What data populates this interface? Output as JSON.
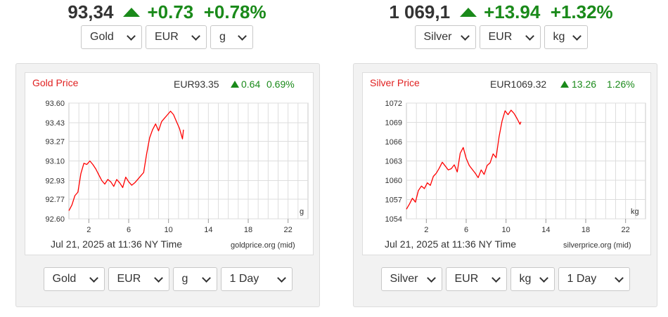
{
  "gold": {
    "headline": {
      "price": "93,34",
      "change": "+0.73",
      "change_pct": "+0.78%"
    },
    "top_selects": {
      "metal": "Gold",
      "currency": "EUR",
      "unit": "g"
    },
    "bottom_selects": {
      "metal": "Gold",
      "currency": "EUR",
      "unit": "g",
      "period": "1 Day"
    },
    "chart_title": "Gold Price",
    "chart_price": "EUR93.35",
    "chart_change": "0.64",
    "chart_change_pct": "0.69%",
    "unit_label": "g",
    "timestamp": "Jul 21, 2025 at 11:36 NY Time",
    "source": "goldprice.org (mid)"
  },
  "silver": {
    "headline": {
      "price": "1 069,1",
      "change": "+13.94",
      "change_pct": "+1.32%"
    },
    "top_selects": {
      "metal": "Silver",
      "currency": "EUR",
      "unit": "kg"
    },
    "bottom_selects": {
      "metal": "Silver",
      "currency": "EUR",
      "unit": "kg",
      "period": "1 Day"
    },
    "chart_title": "Silver Price",
    "chart_price": "EUR1069.32",
    "chart_change": "13.26",
    "chart_change_pct": "1.26%",
    "unit_label": "kg",
    "timestamp": "Jul 21, 2025 at 11:36 NY Time",
    "source": "silverprice.org (mid)"
  },
  "colors": {
    "up": "#1a8a1a",
    "line": "#ff0000",
    "title": "#e02020",
    "grid": "#dddddd"
  },
  "chart_data": [
    {
      "type": "line",
      "title": "Gold Price",
      "x_ticks": [
        2,
        6,
        10,
        14,
        18,
        22
      ],
      "y_ticks": [
        "92.60",
        "92.77",
        "92.93",
        "93.10",
        "93.27",
        "93.43",
        "93.60"
      ],
      "xlim": [
        0,
        24
      ],
      "ylim": [
        92.6,
        93.6
      ],
      "grid": true,
      "series": [
        {
          "x": [
            0,
            0.3,
            0.6,
            0.9,
            1.2,
            1.5,
            1.8,
            2.1,
            2.4,
            2.7,
            3.0,
            3.3,
            3.6,
            3.9,
            4.2,
            4.5,
            4.8,
            5.1,
            5.4,
            5.7,
            6.0,
            6.3,
            6.6,
            6.9,
            7.2,
            7.5,
            7.8,
            8.1,
            8.4,
            8.7,
            9.0,
            9.3,
            9.6,
            9.9,
            10.2,
            10.5,
            10.8,
            11.1,
            11.4,
            11.5
          ],
          "y": [
            92.67,
            92.72,
            92.8,
            92.83,
            92.99,
            93.08,
            93.07,
            93.1,
            93.07,
            93.03,
            92.98,
            92.93,
            92.9,
            92.94,
            92.92,
            92.88,
            92.94,
            92.91,
            92.87,
            92.96,
            92.92,
            92.89,
            92.91,
            92.94,
            92.97,
            93.0,
            93.16,
            93.3,
            93.37,
            93.42,
            93.36,
            93.44,
            93.47,
            93.5,
            93.53,
            93.5,
            93.44,
            93.38,
            93.29,
            93.37
          ]
        }
      ]
    },
    {
      "type": "line",
      "title": "Silver Price",
      "x_ticks": [
        2,
        6,
        10,
        14,
        18,
        22
      ],
      "y_ticks": [
        "1054",
        "1057",
        "1060",
        "1063",
        "1066",
        "1069",
        "1072"
      ],
      "xlim": [
        0,
        24
      ],
      "ylim": [
        1054,
        1072
      ],
      "grid": true,
      "series": [
        {
          "x": [
            0,
            0.3,
            0.6,
            0.9,
            1.2,
            1.5,
            1.8,
            2.1,
            2.4,
            2.7,
            3.0,
            3.3,
            3.6,
            3.9,
            4.2,
            4.5,
            4.8,
            5.1,
            5.4,
            5.7,
            6.0,
            6.3,
            6.6,
            6.9,
            7.2,
            7.5,
            7.8,
            8.1,
            8.4,
            8.7,
            9.0,
            9.3,
            9.6,
            9.9,
            10.2,
            10.5,
            10.8,
            11.1,
            11.4,
            11.5
          ],
          "y": [
            1055.5,
            1056.3,
            1057.2,
            1056.6,
            1058.4,
            1059.1,
            1058.7,
            1059.6,
            1059.2,
            1060.6,
            1061.1,
            1061.9,
            1062.8,
            1062.2,
            1061.6,
            1061.8,
            1062.4,
            1061.3,
            1064.2,
            1065.1,
            1063.4,
            1062.3,
            1061.7,
            1061.1,
            1060.4,
            1061.6,
            1060.9,
            1062.3,
            1062.7,
            1064.1,
            1063.5,
            1066.8,
            1069.2,
            1070.8,
            1070.2,
            1070.9,
            1070.4,
            1069.6,
            1068.7,
            1069.1
          ]
        }
      ]
    }
  ]
}
